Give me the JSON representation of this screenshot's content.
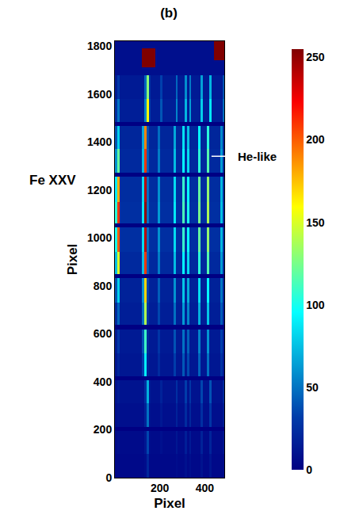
{
  "chart_data": {
    "type": "heatmap",
    "title": "(b)",
    "x_label": "Pixel",
    "y_label": "Pixel",
    "xlim": [
      0,
      487
    ],
    "ylim": [
      0,
      1820
    ],
    "xticks": [
      200,
      400
    ],
    "yticks": [
      0,
      200,
      400,
      600,
      800,
      1000,
      1200,
      1400,
      1600,
      1800
    ],
    "zlim": [
      0,
      255
    ],
    "zticks": [
      0,
      50,
      100,
      150,
      200,
      250
    ],
    "annotations": [
      {
        "text": "Fe XXV",
        "y": 1240
      },
      {
        "text": "He-like",
        "x": 430,
        "y": 1340
      }
    ],
    "x": [
      0,
      10,
      20,
      30,
      40,
      50,
      60,
      70,
      80,
      90,
      100,
      110,
      120,
      130,
      140,
      150,
      160,
      170,
      180,
      190,
      200,
      210,
      220,
      230,
      240,
      250,
      260,
      270,
      280,
      290,
      300,
      310,
      320,
      330,
      340,
      350,
      360,
      370,
      380,
      390,
      400,
      410,
      420,
      430,
      440,
      450,
      460,
      470,
      480,
      487
    ],
    "y": [
      0,
      100,
      195,
      212,
      310,
      407,
      424,
      520,
      619,
      636,
      730,
      831,
      848,
      940,
      1043,
      1060,
      1150,
      1255,
      1272,
      1370,
      1467,
      1484,
      1580,
      1679,
      1710,
      1740,
      1790,
      1820
    ],
    "z": [
      [
        5,
        5,
        5,
        5,
        5,
        5,
        5,
        5,
        5,
        5,
        5,
        5,
        5,
        7,
        20,
        5,
        5,
        5,
        5,
        5,
        5,
        5,
        5,
        5,
        5,
        5,
        5,
        7,
        5,
        5,
        5,
        9,
        5,
        8,
        5,
        5,
        5,
        5,
        10,
        5,
        5,
        5,
        11,
        5,
        5,
        5,
        5,
        5,
        6
      ],
      [
        6,
        8,
        6,
        6,
        6,
        6,
        6,
        6,
        6,
        6,
        6,
        6,
        6,
        12,
        35,
        7,
        6,
        6,
        6,
        6,
        9,
        6,
        6,
        6,
        6,
        6,
        6,
        12,
        6,
        6,
        6,
        16,
        6,
        14,
        6,
        6,
        6,
        6,
        18,
        6,
        6,
        6,
        19,
        6,
        6,
        6,
        6,
        6,
        11
      ],
      [
        0,
        0,
        0,
        0,
        0,
        0,
        0,
        0,
        0,
        0,
        0,
        0,
        0,
        0,
        0,
        0,
        0,
        0,
        0,
        0,
        0,
        0,
        0,
        0,
        0,
        0,
        0,
        0,
        0,
        0,
        0,
        0,
        0,
        0,
        0,
        0,
        0,
        0,
        0,
        0,
        0,
        0,
        0,
        0,
        0,
        0,
        0,
        0,
        0
      ],
      [
        8,
        10,
        8,
        8,
        8,
        8,
        8,
        8,
        8,
        8,
        8,
        8,
        8,
        18,
        50,
        10,
        8,
        8,
        8,
        8,
        13,
        8,
        8,
        8,
        8,
        8,
        8,
        18,
        8,
        8,
        8,
        23,
        8,
        20,
        8,
        8,
        8,
        8,
        25,
        8,
        8,
        8,
        28,
        8,
        8,
        8,
        8,
        8,
        15
      ],
      [
        10,
        15,
        10,
        10,
        10,
        10,
        10,
        10,
        10,
        10,
        10,
        10,
        10,
        25,
        70,
        14,
        10,
        10,
        10,
        10,
        18,
        10,
        10,
        10,
        10,
        10,
        10,
        25,
        10,
        10,
        10,
        32,
        10,
        28,
        10,
        10,
        10,
        10,
        35,
        10,
        10,
        10,
        39,
        10,
        10,
        10,
        10,
        10,
        21
      ],
      [
        0,
        0,
        0,
        0,
        0,
        0,
        0,
        0,
        0,
        0,
        0,
        0,
        0,
        0,
        0,
        0,
        0,
        0,
        0,
        0,
        0,
        0,
        0,
        0,
        0,
        0,
        0,
        0,
        0,
        0,
        0,
        0,
        0,
        0,
        0,
        0,
        0,
        0,
        0,
        0,
        0,
        0,
        0,
        0,
        0,
        0,
        0,
        0,
        0
      ],
      [
        12,
        20,
        12,
        12,
        12,
        12,
        12,
        12,
        12,
        12,
        12,
        12,
        32,
        90,
        18,
        12,
        12,
        12,
        12,
        23,
        12,
        12,
        12,
        12,
        12,
        12,
        32,
        12,
        12,
        12,
        41,
        12,
        36,
        12,
        12,
        12,
        12,
        45,
        12,
        12,
        12,
        50,
        12,
        12,
        12,
        12,
        12,
        27,
        12
      ],
      [
        15,
        30,
        14,
        14,
        14,
        14,
        14,
        14,
        14,
        14,
        14,
        14,
        39,
        110,
        22,
        14,
        14,
        14,
        14,
        28,
        14,
        14,
        14,
        14,
        14,
        14,
        39,
        14,
        14,
        14,
        50,
        14,
        44,
        14,
        14,
        14,
        14,
        55,
        14,
        14,
        14,
        61,
        14,
        14,
        14,
        14,
        14,
        33,
        14
      ],
      [
        0,
        0,
        0,
        0,
        0,
        0,
        0,
        0,
        0,
        0,
        0,
        0,
        0,
        0,
        0,
        0,
        0,
        0,
        0,
        0,
        0,
        0,
        0,
        0,
        0,
        0,
        0,
        0,
        0,
        0,
        0,
        0,
        0,
        0,
        0,
        0,
        0,
        0,
        0,
        0,
        0,
        0,
        0,
        0,
        0,
        0,
        0,
        0,
        0
      ],
      [
        23,
        45,
        16,
        16,
        16,
        16,
        16,
        16,
        16,
        16,
        16,
        16,
        49,
        140,
        28,
        16,
        16,
        16,
        16,
        35,
        16,
        16,
        16,
        16,
        16,
        16,
        49,
        16,
        16,
        16,
        63,
        16,
        56,
        16,
        16,
        16,
        16,
        70,
        16,
        16,
        16,
        77,
        16,
        16,
        16,
        16,
        16,
        42,
        16
      ],
      [
        40,
        80,
        18,
        18,
        18,
        18,
        18,
        18,
        18,
        18,
        18,
        18,
        60,
        170,
        34,
        18,
        18,
        18,
        18,
        43,
        18,
        18,
        18,
        18,
        18,
        18,
        60,
        18,
        18,
        18,
        77,
        18,
        68,
        18,
        18,
        18,
        18,
        85,
        18,
        18,
        18,
        94,
        18,
        18,
        18,
        18,
        18,
        51,
        18
      ],
      [
        0,
        0,
        0,
        0,
        0,
        0,
        0,
        0,
        0,
        0,
        0,
        0,
        0,
        0,
        0,
        0,
        0,
        0,
        0,
        0,
        0,
        0,
        0,
        0,
        0,
        0,
        0,
        0,
        0,
        0,
        0,
        0,
        0,
        0,
        0,
        0,
        0,
        0,
        0,
        0,
        0,
        0,
        0,
        0,
        0,
        0,
        0,
        0,
        0
      ],
      [
        75,
        150,
        22,
        22,
        22,
        22,
        22,
        22,
        22,
        22,
        22,
        22,
        74,
        210,
        42,
        22,
        22,
        22,
        22,
        53,
        22,
        22,
        22,
        22,
        22,
        22,
        74,
        22,
        22,
        22,
        95,
        22,
        84,
        22,
        22,
        22,
        22,
        105,
        22,
        22,
        22,
        116,
        22,
        22,
        22,
        22,
        22,
        63,
        22
      ],
      [
        100,
        200,
        25,
        25,
        25,
        25,
        25,
        25,
        25,
        25,
        25,
        25,
        84,
        240,
        48,
        25,
        25,
        25,
        25,
        60,
        25,
        25,
        25,
        25,
        25,
        25,
        84,
        25,
        25,
        25,
        108,
        25,
        96,
        25,
        25,
        25,
        25,
        120,
        25,
        25,
        25,
        132,
        25,
        25,
        25,
        25,
        25,
        72,
        25
      ],
      [
        0,
        0,
        0,
        0,
        0,
        0,
        0,
        0,
        0,
        0,
        0,
        0,
        0,
        0,
        0,
        0,
        0,
        0,
        0,
        0,
        0,
        0,
        0,
        0,
        0,
        0,
        0,
        0,
        0,
        0,
        0,
        0,
        0,
        0,
        0,
        0,
        0,
        0,
        0,
        0,
        0,
        0,
        0,
        0,
        0,
        0,
        0,
        0,
        0
      ],
      [
        105,
        210,
        25,
        25,
        25,
        25,
        25,
        25,
        25,
        25,
        25,
        25,
        88,
        250,
        50,
        25,
        25,
        25,
        25,
        63,
        25,
        25,
        25,
        25,
        25,
        25,
        88,
        25,
        25,
        25,
        113,
        25,
        100,
        25,
        25,
        25,
        25,
        125,
        25,
        25,
        25,
        138,
        25,
        25,
        25,
        25,
        25,
        75,
        25
      ],
      [
        90,
        180,
        24,
        24,
        24,
        24,
        24,
        24,
        24,
        24,
        24,
        24,
        84,
        240,
        48,
        24,
        24,
        24,
        24,
        60,
        24,
        24,
        24,
        24,
        24,
        24,
        84,
        24,
        24,
        24,
        108,
        24,
        96,
        24,
        24,
        24,
        24,
        120,
        24,
        24,
        24,
        132,
        24,
        24,
        24,
        24,
        24,
        72,
        24
      ],
      [
        0,
        0,
        0,
        0,
        0,
        0,
        0,
        0,
        0,
        0,
        0,
        0,
        0,
        0,
        0,
        0,
        0,
        0,
        0,
        0,
        0,
        0,
        0,
        0,
        0,
        0,
        0,
        0,
        0,
        0,
        0,
        0,
        0,
        0,
        0,
        0,
        0,
        0,
        0,
        0,
        0,
        0,
        0,
        0,
        0,
        0,
        0,
        0,
        0
      ],
      [
        60,
        120,
        22,
        22,
        22,
        22,
        22,
        22,
        22,
        22,
        22,
        22,
        74,
        210,
        42,
        22,
        22,
        22,
        22,
        53,
        22,
        22,
        22,
        22,
        22,
        22,
        74,
        22,
        22,
        22,
        95,
        22,
        84,
        22,
        22,
        22,
        22,
        105,
        22,
        22,
        22,
        116,
        22,
        22,
        22,
        22,
        22,
        63,
        22
      ],
      [
        40,
        80,
        20,
        20,
        20,
        20,
        20,
        20,
        20,
        20,
        20,
        20,
        67,
        190,
        38,
        20,
        20,
        20,
        20,
        48,
        20,
        20,
        20,
        20,
        20,
        20,
        67,
        20,
        20,
        20,
        86,
        20,
        76,
        20,
        20,
        20,
        20,
        95,
        20,
        20,
        20,
        105,
        20,
        20,
        20,
        20,
        20,
        57,
        20
      ],
      [
        0,
        0,
        0,
        0,
        0,
        0,
        0,
        0,
        0,
        0,
        0,
        0,
        0,
        0,
        0,
        0,
        0,
        0,
        0,
        0,
        0,
        0,
        0,
        0,
        0,
        0,
        0,
        0,
        0,
        0,
        0,
        0,
        0,
        0,
        0,
        0,
        0,
        0,
        0,
        0,
        0,
        0,
        0,
        0,
        0,
        0,
        0,
        0,
        0
      ],
      [
        25,
        50,
        16,
        16,
        16,
        16,
        16,
        16,
        16,
        16,
        16,
        16,
        16,
        56,
        160,
        32,
        16,
        16,
        16,
        16,
        40,
        16,
        16,
        16,
        16,
        16,
        16,
        56,
        16,
        16,
        16,
        72,
        16,
        64,
        16,
        16,
        16,
        16,
        80,
        16,
        16,
        16,
        88,
        16,
        16,
        16,
        16,
        16,
        48
      ],
      [
        15,
        30,
        14,
        14,
        14,
        14,
        14,
        14,
        14,
        14,
        14,
        14,
        14,
        46,
        130,
        26,
        14,
        14,
        14,
        14,
        33,
        14,
        14,
        14,
        14,
        14,
        14,
        46,
        14,
        14,
        14,
        59,
        14,
        52,
        14,
        14,
        14,
        14,
        65,
        14,
        14,
        14,
        72,
        14,
        14,
        14,
        14,
        14,
        39
      ],
      [
        8,
        8,
        8,
        8,
        8,
        8,
        8,
        8,
        8,
        8,
        8,
        8,
        8,
        8,
        8,
        8,
        8,
        8,
        8,
        8,
        8,
        8,
        8,
        8,
        8,
        8,
        8,
        8,
        8,
        8,
        8,
        8,
        8,
        8,
        8,
        8,
        8,
        8,
        8,
        8,
        8,
        8,
        8,
        8,
        8,
        8,
        8,
        8,
        8
      ],
      [
        8,
        8,
        8,
        8,
        8,
        8,
        8,
        8,
        8,
        8,
        8,
        8,
        255,
        255,
        255,
        255,
        255,
        255,
        8,
        8,
        8,
        8,
        8,
        8,
        8,
        8,
        8,
        8,
        8,
        8,
        8,
        8,
        8,
        8,
        8,
        8,
        8,
        8,
        8,
        8,
        8,
        8,
        8,
        8,
        8,
        8,
        8,
        8,
        8
      ],
      [
        8,
        8,
        8,
        8,
        8,
        8,
        8,
        8,
        8,
        8,
        8,
        8,
        255,
        255,
        255,
        255,
        255,
        255,
        8,
        8,
        8,
        8,
        8,
        8,
        8,
        8,
        8,
        8,
        8,
        8,
        8,
        8,
        8,
        8,
        8,
        8,
        8,
        8,
        8,
        8,
        8,
        8,
        8,
        8,
        255,
        255,
        255,
        255,
        255
      ],
      [
        8,
        8,
        8,
        8,
        8,
        8,
        8,
        8,
        8,
        8,
        8,
        8,
        8,
        8,
        8,
        8,
        8,
        8,
        8,
        8,
        8,
        8,
        8,
        8,
        8,
        8,
        8,
        8,
        8,
        8,
        8,
        8,
        8,
        8,
        8,
        8,
        8,
        8,
        8,
        8,
        8,
        8,
        8,
        8,
        255,
        255,
        255,
        255,
        255
      ]
    ]
  }
}
